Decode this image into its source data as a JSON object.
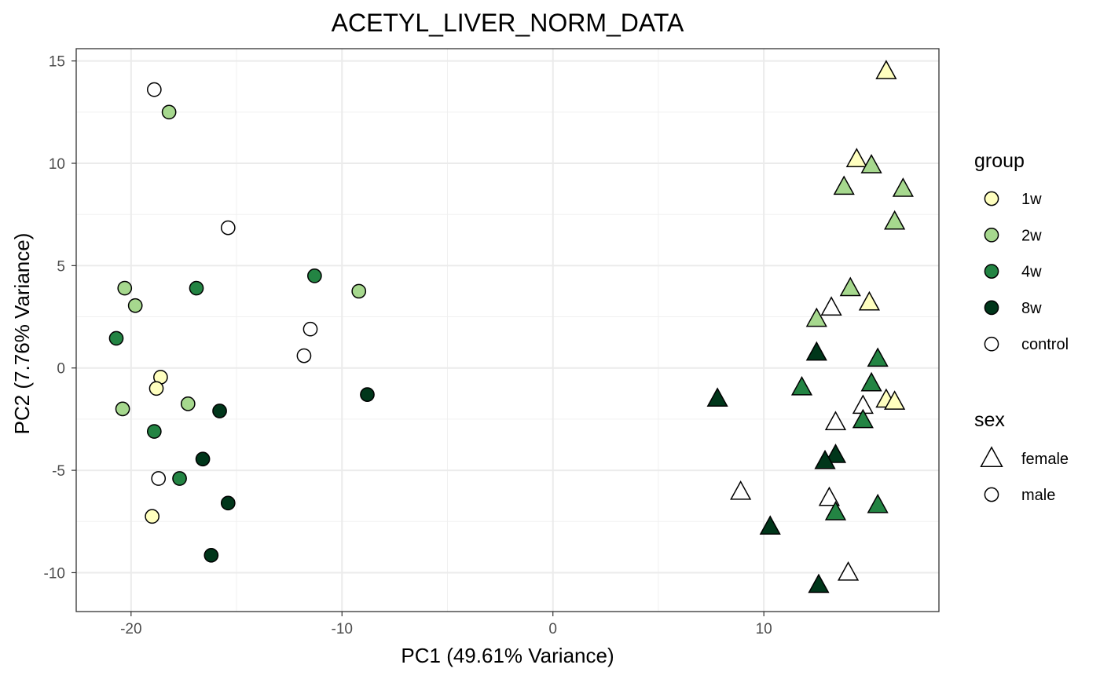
{
  "chart_data": {
    "type": "scatter",
    "title": "ACETYL_LIVER_NORM_DATA",
    "xlabel": "PC1 (49.61% Variance)",
    "ylabel": "PC2 (7.76% Variance)",
    "xlim": [
      -22.6,
      18.3
    ],
    "ylim": [
      -11.9,
      15.6
    ],
    "x_ticks": [
      -20,
      -10,
      0,
      10
    ],
    "x_tick_labels": [
      "-20",
      "-10",
      "0",
      "10"
    ],
    "y_ticks": [
      -10,
      -5,
      0,
      5,
      10,
      15
    ],
    "y_tick_labels": [
      "-10",
      "-5",
      "0",
      "5",
      "10",
      "15"
    ],
    "grid": true,
    "legend": {
      "position": "right",
      "group_title": "group",
      "groups": [
        {
          "label": "1w",
          "color": "#ffffbf"
        },
        {
          "label": "2w",
          "color": "#a6d88e"
        },
        {
          "label": "4w",
          "color": "#238443"
        },
        {
          "label": "8w",
          "color": "#00361a"
        },
        {
          "label": "control",
          "color": "#ffffff"
        }
      ],
      "sex_title": "sex",
      "sexes": [
        {
          "label": "female",
          "shape": "triangle"
        },
        {
          "label": "male",
          "shape": "circle"
        }
      ]
    },
    "points": [
      {
        "x": -18.9,
        "y": 13.6,
        "group": "control",
        "sex": "male"
      },
      {
        "x": -18.2,
        "y": 12.5,
        "group": "2w",
        "sex": "male"
      },
      {
        "x": -15.4,
        "y": 6.85,
        "group": "control",
        "sex": "male"
      },
      {
        "x": -20.3,
        "y": 3.9,
        "group": "2w",
        "sex": "male"
      },
      {
        "x": -19.8,
        "y": 3.05,
        "group": "2w",
        "sex": "male"
      },
      {
        "x": -16.9,
        "y": 3.9,
        "group": "4w",
        "sex": "male"
      },
      {
        "x": -11.3,
        "y": 4.5,
        "group": "4w",
        "sex": "male"
      },
      {
        "x": -9.2,
        "y": 3.75,
        "group": "2w",
        "sex": "male"
      },
      {
        "x": -20.7,
        "y": 1.45,
        "group": "4w",
        "sex": "male"
      },
      {
        "x": -11.5,
        "y": 1.9,
        "group": "control",
        "sex": "male"
      },
      {
        "x": -11.8,
        "y": 0.6,
        "group": "control",
        "sex": "male"
      },
      {
        "x": -18.6,
        "y": -0.45,
        "group": "1w",
        "sex": "male"
      },
      {
        "x": -18.8,
        "y": -1.0,
        "group": "1w",
        "sex": "male"
      },
      {
        "x": -20.4,
        "y": -2.0,
        "group": "2w",
        "sex": "male"
      },
      {
        "x": -17.3,
        "y": -1.75,
        "group": "2w",
        "sex": "male"
      },
      {
        "x": -15.8,
        "y": -2.1,
        "group": "8w",
        "sex": "male"
      },
      {
        "x": -8.8,
        "y": -1.3,
        "group": "8w",
        "sex": "male"
      },
      {
        "x": -18.9,
        "y": -3.1,
        "group": "4w",
        "sex": "male"
      },
      {
        "x": -16.6,
        "y": -4.45,
        "group": "8w",
        "sex": "male"
      },
      {
        "x": -18.7,
        "y": -5.4,
        "group": "control",
        "sex": "male"
      },
      {
        "x": -17.7,
        "y": -5.4,
        "group": "4w",
        "sex": "male"
      },
      {
        "x": -15.4,
        "y": -6.6,
        "group": "8w",
        "sex": "male"
      },
      {
        "x": -19.0,
        "y": -7.25,
        "group": "1w",
        "sex": "male"
      },
      {
        "x": -16.2,
        "y": -9.15,
        "group": "8w",
        "sex": "male"
      },
      {
        "x": 15.8,
        "y": 14.5,
        "group": "1w",
        "sex": "female"
      },
      {
        "x": 14.4,
        "y": 10.2,
        "group": "1w",
        "sex": "female"
      },
      {
        "x": 15.1,
        "y": 9.9,
        "group": "2w",
        "sex": "female"
      },
      {
        "x": 13.8,
        "y": 8.85,
        "group": "2w",
        "sex": "female"
      },
      {
        "x": 16.6,
        "y": 8.75,
        "group": "2w",
        "sex": "female"
      },
      {
        "x": 16.2,
        "y": 7.15,
        "group": "2w",
        "sex": "female"
      },
      {
        "x": 14.1,
        "y": 3.9,
        "group": "2w",
        "sex": "female"
      },
      {
        "x": 15.0,
        "y": 3.2,
        "group": "1w",
        "sex": "female"
      },
      {
        "x": 13.2,
        "y": 2.95,
        "group": "control",
        "sex": "female"
      },
      {
        "x": 12.5,
        "y": 2.4,
        "group": "2w",
        "sex": "female"
      },
      {
        "x": 12.5,
        "y": 0.75,
        "group": "8w",
        "sex": "female"
      },
      {
        "x": 15.4,
        "y": 0.45,
        "group": "4w",
        "sex": "female"
      },
      {
        "x": 11.8,
        "y": -0.95,
        "group": "4w",
        "sex": "female"
      },
      {
        "x": 15.1,
        "y": -0.75,
        "group": "4w",
        "sex": "female"
      },
      {
        "x": 7.8,
        "y": -1.5,
        "group": "8w",
        "sex": "female"
      },
      {
        "x": 15.8,
        "y": -1.55,
        "group": "1w",
        "sex": "female"
      },
      {
        "x": 16.2,
        "y": -1.65,
        "group": "1w",
        "sex": "female"
      },
      {
        "x": 14.7,
        "y": -1.85,
        "group": "control",
        "sex": "female"
      },
      {
        "x": 13.4,
        "y": -2.65,
        "group": "control",
        "sex": "female"
      },
      {
        "x": 14.7,
        "y": -2.55,
        "group": "4w",
        "sex": "female"
      },
      {
        "x": 13.4,
        "y": -4.25,
        "group": "8w",
        "sex": "female"
      },
      {
        "x": 12.9,
        "y": -4.55,
        "group": "8w",
        "sex": "female"
      },
      {
        "x": 8.9,
        "y": -6.05,
        "group": "control",
        "sex": "female"
      },
      {
        "x": 13.1,
        "y": -6.35,
        "group": "control",
        "sex": "female"
      },
      {
        "x": 13.4,
        "y": -7.05,
        "group": "4w",
        "sex": "female"
      },
      {
        "x": 15.4,
        "y": -6.7,
        "group": "4w",
        "sex": "female"
      },
      {
        "x": 10.3,
        "y": -7.75,
        "group": "8w",
        "sex": "female"
      },
      {
        "x": 14.0,
        "y": -10.0,
        "group": "control",
        "sex": "female"
      },
      {
        "x": 12.6,
        "y": -10.6,
        "group": "8w",
        "sex": "female"
      }
    ]
  }
}
